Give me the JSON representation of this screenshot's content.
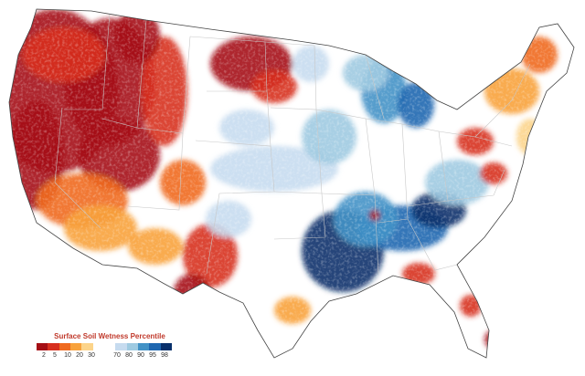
{
  "legend": {
    "title": "Surface Soil Wetness Percentile",
    "ticks": [
      "2",
      "5",
      "10",
      "20",
      "30",
      "70",
      "80",
      "90",
      "95",
      "98"
    ],
    "colors": {
      "very_dry": "#a50f15",
      "dry": "#d7301f",
      "moderately_dry": "#ef6a1f",
      "slightly_dry": "#f8a23c",
      "near_normal_dry": "#fcd48a",
      "near_normal_wet": "#c6dbef",
      "slightly_wet": "#9ecae1",
      "moderately_wet": "#4292c6",
      "wet": "#1f67b0",
      "very_wet": "#08306b"
    }
  }
}
